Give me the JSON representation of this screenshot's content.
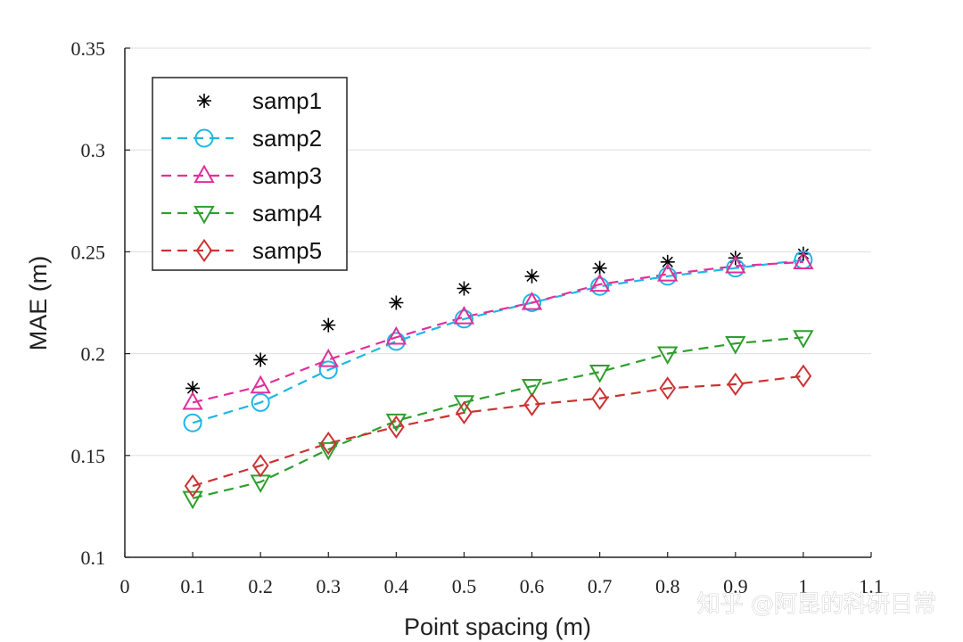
{
  "watermark": "知乎 @阿昆的科研日常",
  "chart_data": {
    "type": "line",
    "xlabel": "Point spacing (m)",
    "ylabel": "MAE (m)",
    "xlim": [
      0,
      1.1
    ],
    "ylim": [
      0.1,
      0.35
    ],
    "xticks": [
      "0",
      "0.1",
      "0.2",
      "0.3",
      "0.4",
      "0.5",
      "0.6",
      "0.7",
      "0.8",
      "0.9",
      "1",
      "1.1"
    ],
    "yticks": [
      "0.1",
      "0.15",
      "0.2",
      "0.25",
      "0.3",
      "0.35"
    ],
    "grid": "horizontal",
    "legend_position": "top-left",
    "x": [
      0.1,
      0.2,
      0.3,
      0.4,
      0.5,
      0.6,
      0.7,
      0.8,
      0.9,
      1.0
    ],
    "series": [
      {
        "name": "samp1",
        "color": "#000000",
        "marker": "asterisk",
        "line": "none",
        "values": [
          0.183,
          0.197,
          0.214,
          0.225,
          0.232,
          0.238,
          0.242,
          0.245,
          0.247,
          0.249
        ]
      },
      {
        "name": "samp2",
        "color": "#1fb6e6",
        "marker": "circle",
        "line": "dashed",
        "values": [
          0.166,
          0.176,
          0.192,
          0.206,
          0.217,
          0.225,
          0.233,
          0.238,
          0.242,
          0.246
        ]
      },
      {
        "name": "samp3",
        "color": "#e0309a",
        "marker": "triangle-up",
        "line": "dashed",
        "values": [
          0.176,
          0.184,
          0.197,
          0.208,
          0.218,
          0.225,
          0.234,
          0.239,
          0.243,
          0.245
        ]
      },
      {
        "name": "samp4",
        "color": "#2e9e2e",
        "marker": "triangle-down",
        "line": "dashed",
        "values": [
          0.129,
          0.137,
          0.153,
          0.167,
          0.176,
          0.184,
          0.191,
          0.2,
          0.205,
          0.208
        ]
      },
      {
        "name": "samp5",
        "color": "#cc3333",
        "marker": "diamond",
        "line": "dashed",
        "values": [
          0.135,
          0.145,
          0.156,
          0.164,
          0.171,
          0.175,
          0.178,
          0.183,
          0.185,
          0.189
        ]
      }
    ]
  }
}
